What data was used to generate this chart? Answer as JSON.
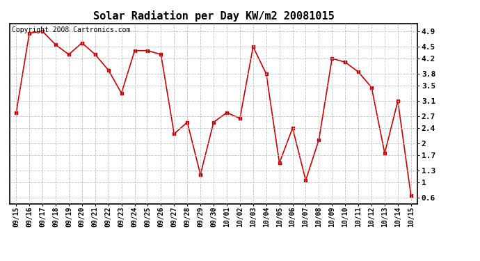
{
  "title": "Solar Radiation per Day KW/m2 20081015",
  "copyright_text": "Copyright 2008 Cartronics.com",
  "dates": [
    "09/15",
    "09/16",
    "09/17",
    "09/18",
    "09/19",
    "09/20",
    "09/21",
    "09/22",
    "09/23",
    "09/24",
    "09/25",
    "09/26",
    "09/27",
    "09/28",
    "09/29",
    "09/30",
    "10/01",
    "10/02",
    "10/03",
    "10/04",
    "10/05",
    "10/06",
    "10/07",
    "10/08",
    "10/09",
    "10/10",
    "10/11",
    "10/12",
    "10/13",
    "10/14",
    "10/15"
  ],
  "values": [
    2.8,
    4.85,
    4.9,
    4.55,
    4.3,
    4.6,
    4.3,
    3.9,
    3.3,
    4.4,
    4.4,
    4.3,
    2.25,
    2.55,
    1.2,
    2.55,
    2.8,
    2.65,
    4.5,
    3.8,
    1.5,
    2.4,
    1.05,
    2.1,
    4.2,
    4.1,
    3.85,
    3.45,
    1.75,
    3.1,
    0.65
  ],
  "line_color": "#cc0000",
  "marker": "s",
  "marker_size": 3,
  "marker_linewidth": 1.0,
  "line_width": 1.2,
  "yticks": [
    0.6,
    1.0,
    1.3,
    1.7,
    2.0,
    2.4,
    2.7,
    3.1,
    3.5,
    3.8,
    4.2,
    4.5,
    4.9
  ],
  "ylim": [
    0.45,
    5.1
  ],
  "background_color": "#ffffff",
  "grid_color": "#bbbbbb",
  "title_fontsize": 11,
  "copyright_fontsize": 7,
  "tick_fontsize": 7,
  "ytick_fontsize": 8
}
